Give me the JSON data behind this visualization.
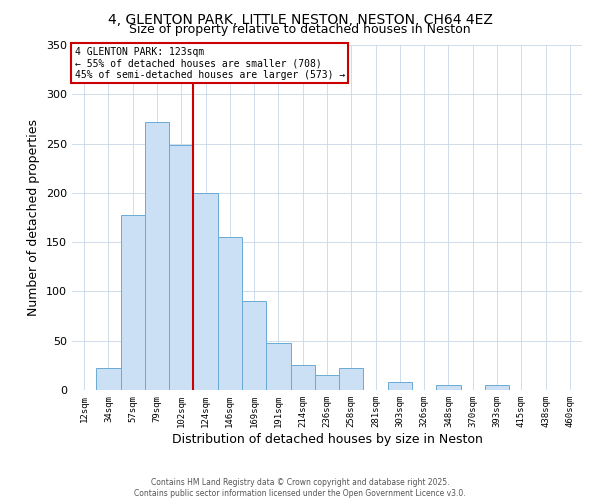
{
  "title": "4, GLENTON PARK, LITTLE NESTON, NESTON, CH64 4EZ",
  "subtitle": "Size of property relative to detached houses in Neston",
  "xlabel": "Distribution of detached houses by size in Neston",
  "ylabel": "Number of detached properties",
  "bar_labels": [
    "12sqm",
    "34sqm",
    "57sqm",
    "79sqm",
    "102sqm",
    "124sqm",
    "146sqm",
    "169sqm",
    "191sqm",
    "214sqm",
    "236sqm",
    "258sqm",
    "281sqm",
    "303sqm",
    "326sqm",
    "348sqm",
    "370sqm",
    "393sqm",
    "415sqm",
    "438sqm",
    "460sqm"
  ],
  "bar_values": [
    0,
    22,
    178,
    272,
    249,
    200,
    155,
    90,
    48,
    25,
    15,
    22,
    0,
    8,
    0,
    5,
    0,
    5,
    0,
    0,
    0
  ],
  "bar_color": "#cce0f5",
  "bar_edge_color": "#6aaad4",
  "ylim": [
    0,
    350
  ],
  "yticks": [
    0,
    50,
    100,
    150,
    200,
    250,
    300,
    350
  ],
  "vline_x": 4.5,
  "vline_color": "#cc0000",
  "annotation_title": "4 GLENTON PARK: 123sqm",
  "annotation_line1": "← 55% of detached houses are smaller (708)",
  "annotation_line2": "45% of semi-detached houses are larger (573) →",
  "annotation_box_color": "#cc0000",
  "footer_line1": "Contains HM Land Registry data © Crown copyright and database right 2025.",
  "footer_line2": "Contains public sector information licensed under the Open Government Licence v3.0.",
  "bg_color": "#ffffff",
  "grid_color": "#c8d8e8"
}
